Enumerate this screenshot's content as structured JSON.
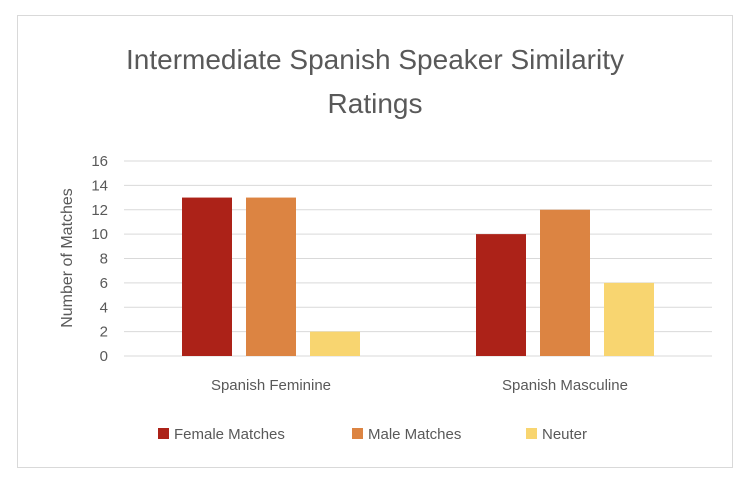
{
  "colors": {
    "female": "#ac2218",
    "male": "#dc8442",
    "neuter": "#f8d570",
    "grid": "#d9d9d9",
    "text": "#595959"
  },
  "chart_data": {
    "type": "bar",
    "title": "Intermediate Spanish Speaker Similarity Ratings",
    "title_lines": [
      "Intermediate Spanish Speaker Similarity",
      "Ratings"
    ],
    "xlabel": "",
    "ylabel": "Number  of Matches",
    "ylim": [
      0,
      16
    ],
    "yticks": [
      0,
      2,
      4,
      6,
      8,
      10,
      12,
      14,
      16
    ],
    "grid": true,
    "legend_position": "bottom",
    "categories": [
      "Spanish Feminine",
      "Spanish Masculine"
    ],
    "series": [
      {
        "name": "Female Matches",
        "color": "#ac2218",
        "values": [
          13,
          10
        ]
      },
      {
        "name": "Male Matches",
        "color": "#dc8442",
        "values": [
          13,
          12
        ]
      },
      {
        "name": "Neuter",
        "color": "#f8d570",
        "values": [
          2,
          6
        ]
      }
    ]
  }
}
